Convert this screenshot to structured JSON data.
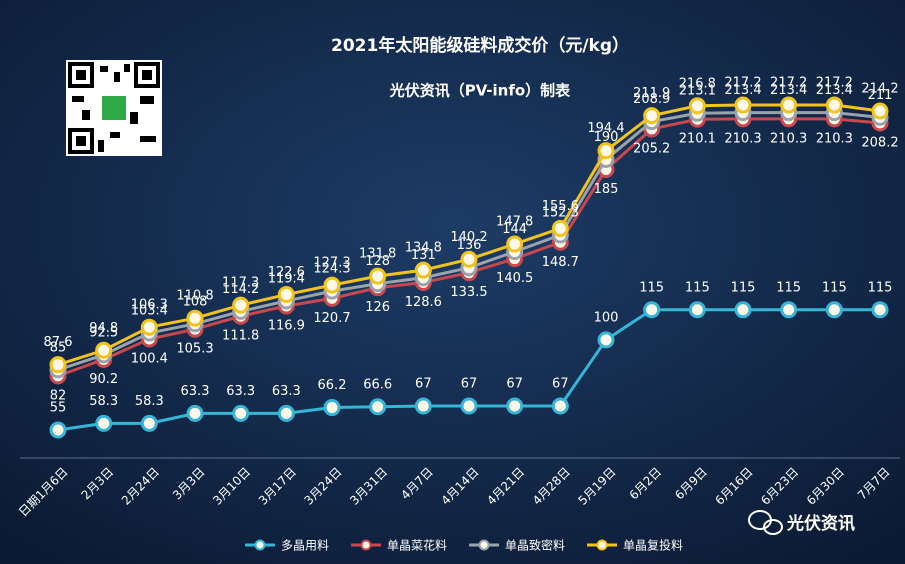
{
  "chart_data": {
    "type": "line",
    "title": "2021年太阳能级硅料成交价（元/kg）",
    "subtitle": "光伏资讯（PV-info）制表",
    "watermark": "光伏资讯",
    "categories": [
      "日期1月6日",
      "2月3日",
      "2月24日",
      "3月3日",
      "3月10日",
      "3月17日",
      "3月24日",
      "3月31日",
      "4月7日",
      "4月14日",
      "4月21日",
      "4月28日",
      "5月19日",
      "6月2日",
      "6月9日",
      "6月16日",
      "6月23日",
      "6月30日",
      "7月7日"
    ],
    "series": [
      {
        "name": "多晶用料",
        "color": "#35b6d6",
        "values": [
          55,
          58.3,
          58.3,
          63.3,
          63.3,
          63.3,
          66.2,
          66.6,
          67,
          67,
          67,
          67,
          100,
          115,
          115,
          115,
          115,
          115,
          115
        ]
      },
      {
        "name": "单晶菜花料",
        "color": "#c9474d",
        "values": [
          82,
          90.2,
          100.4,
          105.3,
          111.8,
          116.9,
          120.7,
          126,
          128.6,
          133.5,
          140.5,
          148.7,
          185,
          205.2,
          210.1,
          210.3,
          210.3,
          210.3,
          208.2
        ]
      },
      {
        "name": "单晶致密料",
        "color": "#9aa3ad",
        "values": [
          85,
          92.5,
          103.4,
          108,
          114.2,
          119.4,
          124.3,
          128,
          131,
          136,
          144,
          152.3,
          190,
          208.9,
          213.1,
          213.4,
          213.4,
          213.4,
          211
        ]
      },
      {
        "name": "单晶复投料",
        "color": "#f2c31a",
        "values": [
          87.6,
          94.8,
          106.3,
          110.8,
          117.3,
          122.6,
          127.3,
          131.8,
          134.8,
          140.2,
          147.8,
          155.6,
          194.4,
          211.9,
          216.8,
          217.2,
          217.2,
          217.2,
          214.2
        ]
      }
    ]
  }
}
